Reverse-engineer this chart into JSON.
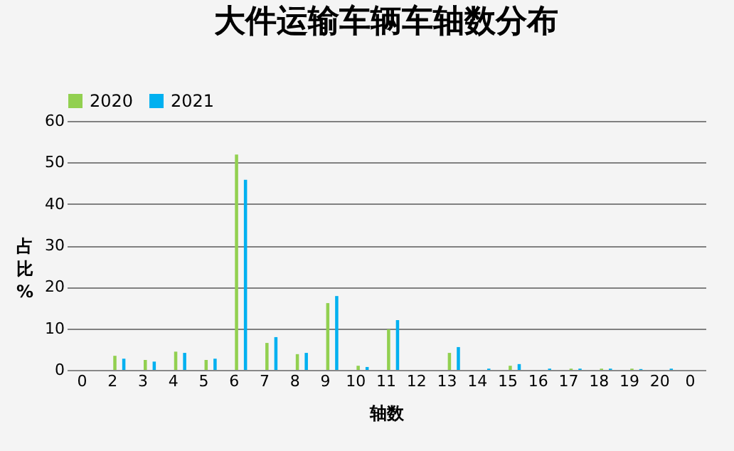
{
  "chart_data": {
    "type": "bar",
    "title": "大件运输车辆车轴数分布",
    "xlabel": "轴数",
    "ylabel": "占比%",
    "categories": [
      "0",
      "2",
      "3",
      "4",
      "5",
      "6",
      "7",
      "8",
      "9",
      "10",
      "11",
      "12",
      "13",
      "14",
      "15",
      "16",
      "17",
      "18",
      "19",
      "20",
      "0"
    ],
    "series": [
      {
        "name": "2020",
        "color": "#92d050",
        "values": [
          null,
          3.4,
          2.4,
          4.4,
          2.4,
          51.9,
          6.5,
          3.8,
          16.1,
          1.0,
          9.8,
          null,
          4.1,
          null,
          1.0,
          null,
          0.3,
          0.3,
          0.3,
          null,
          null
        ]
      },
      {
        "name": "2021",
        "color": "#00b0f0",
        "values": [
          null,
          2.7,
          2.0,
          4.1,
          2.7,
          45.8,
          7.9,
          4.1,
          17.8,
          0.7,
          12.0,
          null,
          5.5,
          0.3,
          1.4,
          0.3,
          0.3,
          0.3,
          0.2,
          0.3,
          null
        ]
      }
    ],
    "ylim": [
      0,
      60
    ],
    "yticks": [
      0,
      10,
      20,
      30,
      40,
      50,
      60
    ],
    "grid": "y",
    "legend": "top"
  }
}
